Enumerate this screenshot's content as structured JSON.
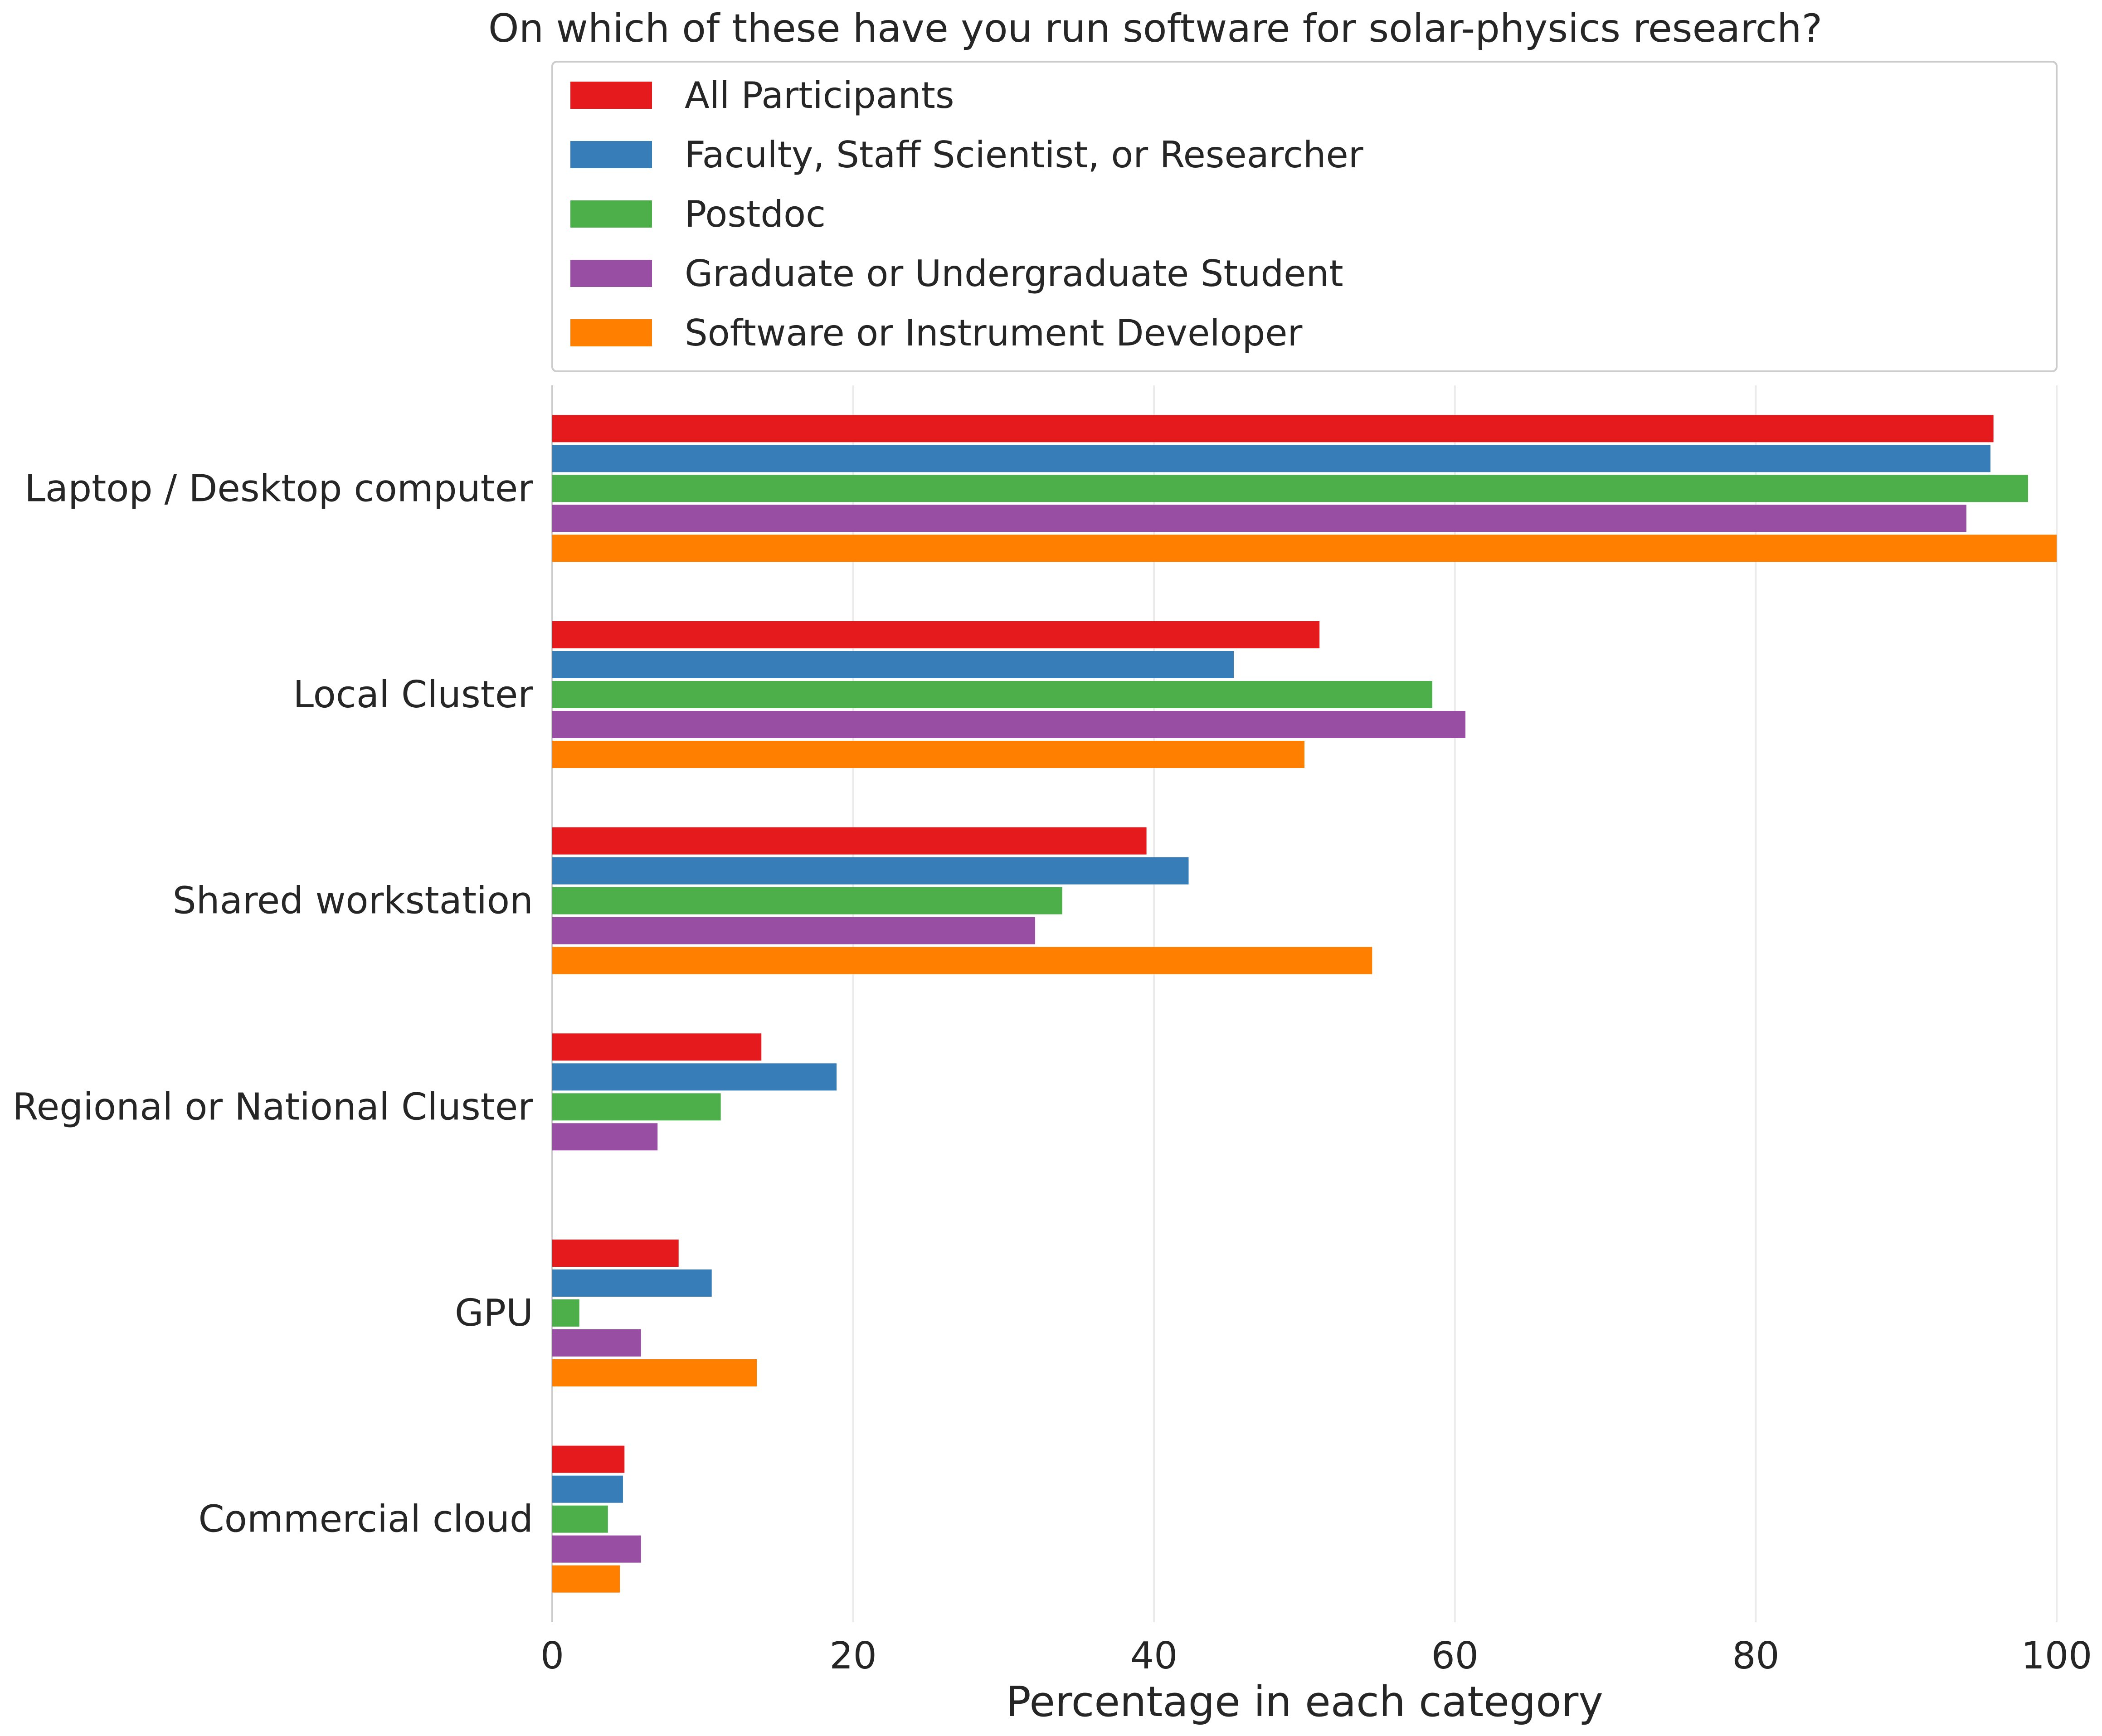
{
  "chart_data": {
    "type": "bar",
    "orientation": "horizontal",
    "title": "On which of these have you run software for solar-physics research?",
    "xlabel": "Percentage in each category",
    "ylabel": "",
    "xlim": [
      0,
      100
    ],
    "xticks": [
      0,
      20,
      40,
      60,
      80,
      100
    ],
    "grid": "vertical",
    "legend_position": "top",
    "categories": [
      "Laptop / Desktop computer",
      "Local Cluster",
      "Shared workstation",
      "Regional or National Cluster",
      "GPU",
      "Commercial cloud"
    ],
    "series": [
      {
        "name": "All Participants",
        "color": "#e41a1c",
        "values": [
          95.8,
          51.0,
          39.5,
          13.9,
          8.4,
          4.8
        ]
      },
      {
        "name": "Faculty, Staff Scientist, or Researcher",
        "color": "#377eb8",
        "values": [
          95.6,
          45.3,
          42.3,
          18.9,
          10.6,
          4.7
        ]
      },
      {
        "name": "Postdoc",
        "color": "#4daf4a",
        "values": [
          98.1,
          58.5,
          33.9,
          11.2,
          1.8,
          3.7
        ]
      },
      {
        "name": "Graduate or Undergraduate Student",
        "color": "#984ea3",
        "values": [
          94.0,
          60.7,
          32.1,
          7.0,
          5.9,
          5.9
        ]
      },
      {
        "name": "Software or Instrument Developer",
        "color": "#ff7f00",
        "values": [
          100.0,
          50.0,
          54.5,
          0.0,
          13.6,
          4.5
        ]
      }
    ]
  }
}
